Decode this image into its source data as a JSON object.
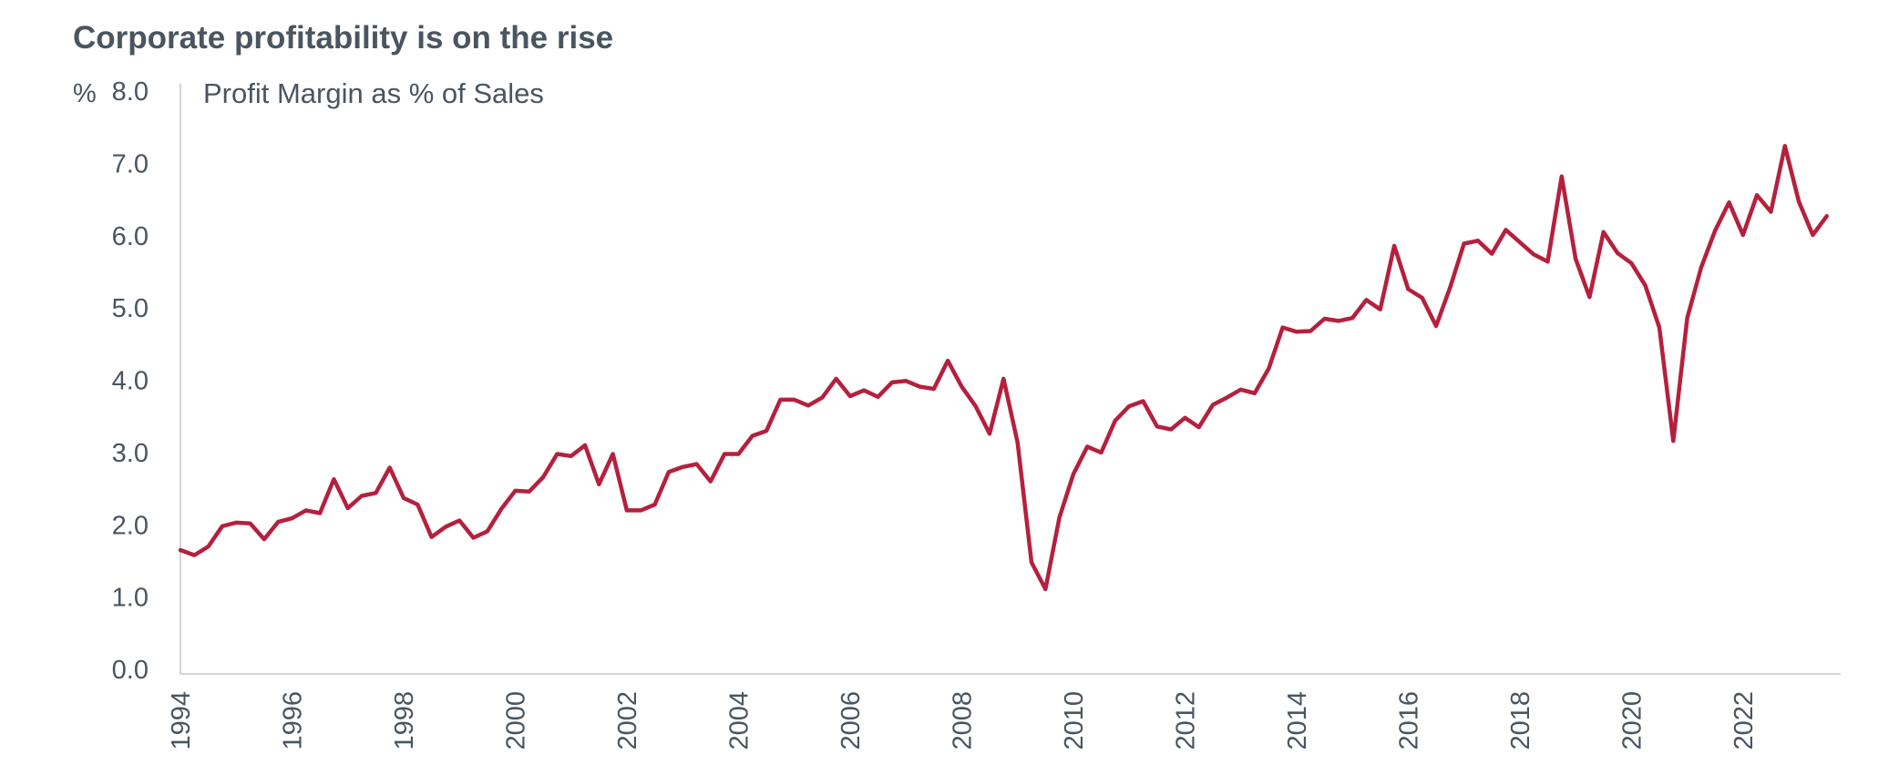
{
  "chart_data": {
    "type": "line",
    "title": "Corporate profitability is on the rise",
    "ylabel": "%",
    "series_label": "Profit Margin as % of Sales",
    "ylim": [
      0,
      8
    ],
    "yticks": [
      "0.0",
      "1.0",
      "2.0",
      "3.0",
      "4.0",
      "5.0",
      "6.0",
      "7.0",
      "8.0"
    ],
    "xlim": [
      1994,
      2023.75
    ],
    "xticks": [
      "1994",
      "1996",
      "1998",
      "2000",
      "2002",
      "2004",
      "2006",
      "2008",
      "2010",
      "2012",
      "2014",
      "2016",
      "2018",
      "2020",
      "2022"
    ],
    "grid": false,
    "line_color": "#b5203d",
    "series": [
      {
        "x": [
          1994.0,
          1994.25,
          1994.5,
          1994.75,
          1995.0,
          1995.25,
          1995.5,
          1995.75,
          1996.0,
          1996.25,
          1996.5,
          1996.75,
          1997.0,
          1997.25,
          1997.5,
          1997.75,
          1998.0,
          1998.25,
          1998.5,
          1998.75,
          1999.0,
          1999.25,
          1999.5,
          1999.75,
          2000.0,
          2000.25,
          2000.5,
          2000.75,
          2001.0,
          2001.25,
          2001.5,
          2001.75,
          2002.0,
          2002.25,
          2002.5,
          2002.75,
          2003.0,
          2003.25,
          2003.5,
          2003.75,
          2004.0,
          2004.25,
          2004.5,
          2004.75,
          2005.0,
          2005.25,
          2005.5,
          2005.75,
          2006.0,
          2006.25,
          2006.5,
          2006.75,
          2007.0,
          2007.25,
          2007.5,
          2007.75,
          2008.0,
          2008.25,
          2008.5,
          2008.75,
          2009.0,
          2009.25,
          2009.5,
          2009.75,
          2010.0,
          2010.25,
          2010.5,
          2010.75,
          2011.0,
          2011.25,
          2011.5,
          2011.75,
          2012.0,
          2012.25,
          2012.5,
          2012.75,
          2013.0,
          2013.25,
          2013.5,
          2013.75,
          2014.0,
          2014.25,
          2014.5,
          2014.75,
          2015.0,
          2015.25,
          2015.5,
          2015.75,
          2016.0,
          2016.25,
          2016.5,
          2016.75,
          2017.0,
          2017.25,
          2017.5,
          2017.75,
          2018.0,
          2018.25,
          2018.5,
          2018.75,
          2019.0,
          2019.25,
          2019.5,
          2019.75,
          2020.0,
          2020.25,
          2020.5,
          2020.75,
          2021.0,
          2021.25,
          2021.5,
          2021.75,
          2022.0,
          2022.25,
          2022.5,
          2022.75,
          2023.0,
          2023.25,
          2023.5
        ],
        "values": [
          1.65,
          1.58,
          1.7,
          1.98,
          2.03,
          2.02,
          1.8,
          2.04,
          2.09,
          2.2,
          2.16,
          2.63,
          2.23,
          2.4,
          2.44,
          2.79,
          2.37,
          2.28,
          1.83,
          1.97,
          2.06,
          1.82,
          1.91,
          2.22,
          2.47,
          2.46,
          2.66,
          2.98,
          2.95,
          3.1,
          2.56,
          2.98,
          2.2,
          2.2,
          2.28,
          2.73,
          2.8,
          2.84,
          2.6,
          2.98,
          2.98,
          3.23,
          3.3,
          3.73,
          3.73,
          3.65,
          3.76,
          4.02,
          3.78,
          3.86,
          3.77,
          3.97,
          3.99,
          3.91,
          3.88,
          4.27,
          3.91,
          3.64,
          3.26,
          4.02,
          3.14,
          1.48,
          1.11,
          2.1,
          2.7,
          3.08,
          3.0,
          3.44,
          3.64,
          3.71,
          3.36,
          3.32,
          3.48,
          3.35,
          3.66,
          3.76,
          3.87,
          3.82,
          4.16,
          4.73,
          4.67,
          4.68,
          4.85,
          4.82,
          4.86,
          5.11,
          4.98,
          5.86,
          5.26,
          5.14,
          4.75,
          5.28,
          5.89,
          5.93,
          5.75,
          6.08,
          5.91,
          5.74,
          5.64,
          6.82,
          5.68,
          5.15,
          6.05,
          5.76,
          5.62,
          5.31,
          4.73,
          3.16,
          4.86,
          5.56,
          6.07,
          6.46,
          6.01,
          6.56,
          6.33,
          7.24,
          6.47,
          6.01,
          6.27
        ]
      }
    ]
  }
}
